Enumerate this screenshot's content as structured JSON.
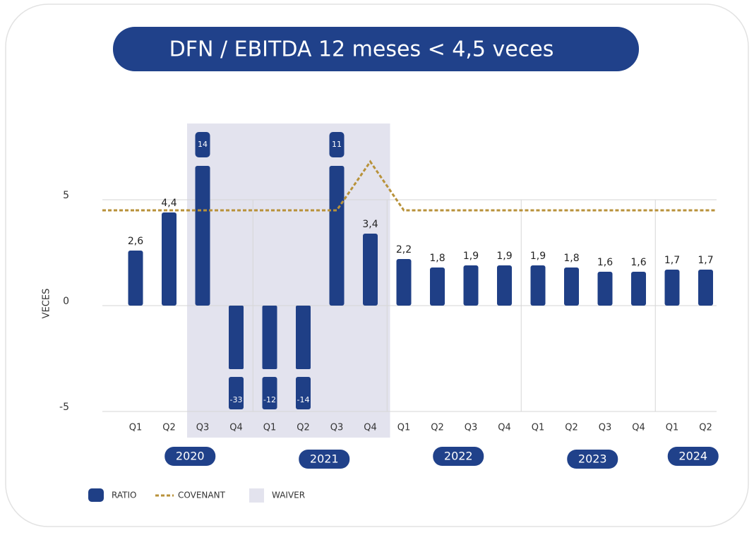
{
  "chart_data": {
    "type": "bar",
    "title": "DFN / EBITDA 12 meses < 4,5 veces",
    "y_label": "VECES",
    "categories": [
      "Q1",
      "Q2",
      "Q3",
      "Q4",
      "Q1",
      "Q2",
      "Q3",
      "Q4",
      "Q1",
      "Q2",
      "Q3",
      "Q4",
      "Q1",
      "Q2",
      "Q3",
      "Q4",
      "Q1",
      "Q2"
    ],
    "groups": [
      {
        "name": "2020",
        "size": 4
      },
      {
        "name": "2021",
        "size": 4
      },
      {
        "name": "2022",
        "size": 4
      },
      {
        "name": "2023",
        "size": 4
      },
      {
        "name": "2024",
        "size": 2
      }
    ],
    "series": [
      {
        "name": "RATIO",
        "color": "#1f3f86",
        "values": [
          2.6,
          4.4,
          14,
          -33,
          -12,
          -14,
          11,
          3.4,
          2.2,
          1.8,
          1.9,
          1.9,
          1.9,
          1.8,
          1.6,
          1.6,
          1.7,
          1.7
        ],
        "value_labels": [
          "2,6",
          "4,4",
          "14",
          "-33",
          "-12",
          "-14",
          "11",
          "3,4",
          "2,2",
          "1,8",
          "1,9",
          "1,9",
          "1,9",
          "1,8",
          "1,6",
          "1,6",
          "1,7",
          "1,7"
        ]
      },
      {
        "name": "COVENANT",
        "type": "line",
        "color": "#b8923a",
        "values": [
          4.5,
          4.5,
          4.5,
          4.5,
          4.5,
          4.5,
          4.5,
          6.8,
          4.5,
          4.5,
          4.5,
          4.5,
          4.5,
          4.5,
          4.5,
          4.5,
          4.5,
          4.5
        ]
      }
    ],
    "waiver": {
      "name": "WAIVER",
      "color": "#e3e3ee",
      "from": 2,
      "to": 7
    },
    "ylim": [
      -5,
      5
    ],
    "yticks": [
      -5,
      0,
      5
    ],
    "grid": true
  }
}
